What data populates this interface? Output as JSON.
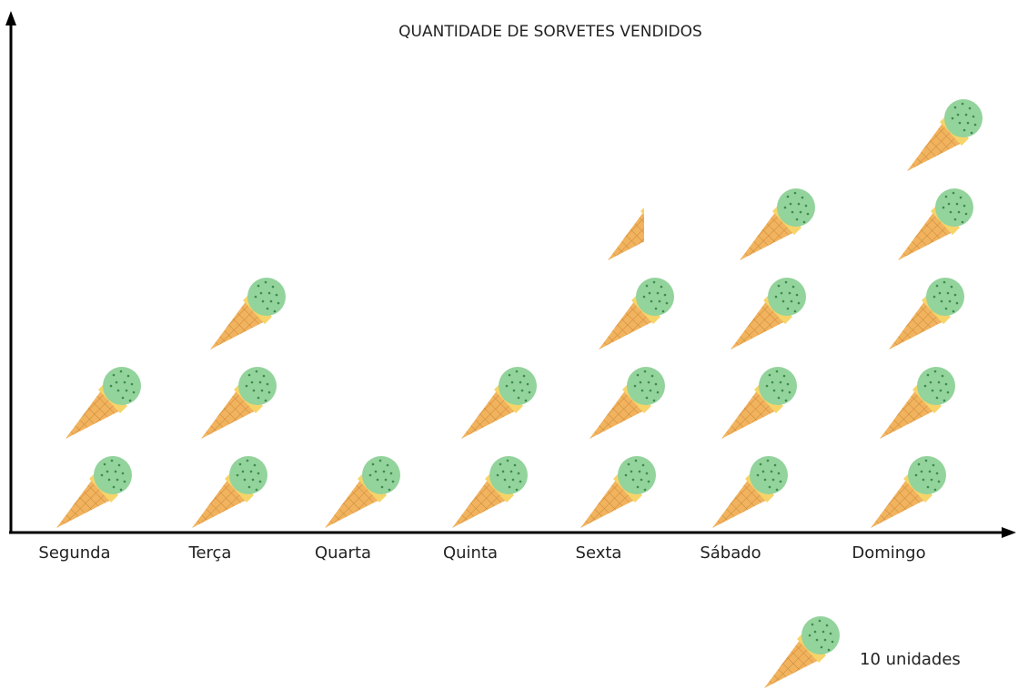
{
  "chart_data": {
    "type": "pictograph",
    "title": "QUANTIDADE DE SORVETES VENDIDOS",
    "categories": [
      "Segunda",
      "Terça",
      "Quarta",
      "Quinta",
      "Sexta",
      "Sábado",
      "Domingo"
    ],
    "values": [
      20,
      30,
      10,
      20,
      35,
      40,
      50
    ],
    "legend": {
      "value": 10,
      "label": "10 unidades"
    },
    "cone_color": "#f2b35e",
    "scoop_color": "#93d39c"
  }
}
